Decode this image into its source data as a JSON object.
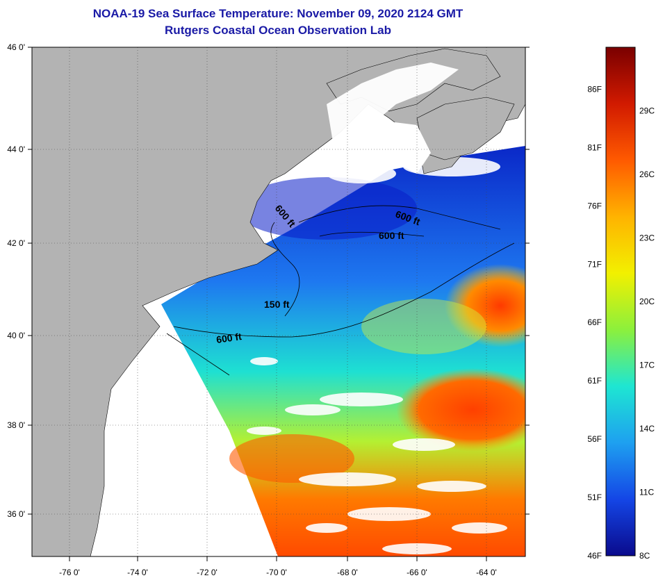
{
  "header": {
    "title": "NOAA-19 Sea Surface Temperature:  November 09, 2020 2124 GMT",
    "subtitle": "Rutgers Coastal Ocean Observation Lab"
  },
  "map": {
    "lat_labels": [
      "46 0'",
      "44 0'",
      "42 0'",
      "40 0'",
      "38 0'",
      "36 0'"
    ],
    "lon_labels": [
      "-76 0'",
      "-74 0'",
      "-72 0'",
      "-70 0'",
      "-68 0'",
      "-66 0'",
      "-64 0'"
    ],
    "contour_labels": [
      "600 ft",
      "600 ft",
      "600 ft",
      "150 ft",
      "600 ft"
    ]
  },
  "colorbar": {
    "fahrenheit": [
      "86F",
      "81F",
      "76F",
      "71F",
      "66F",
      "61F",
      "56F",
      "51F",
      "46F"
    ],
    "celsius": [
      "29C",
      "26C",
      "23C",
      "20C",
      "17C",
      "14C",
      "11C",
      "8C"
    ],
    "colors": [
      "#7a0000",
      "#d11a00",
      "#ff5a00",
      "#ffb300",
      "#f2f000",
      "#8cf03c",
      "#1ee6d2",
      "#1ea0f0",
      "#1446e6",
      "#0a0a8c"
    ]
  }
}
